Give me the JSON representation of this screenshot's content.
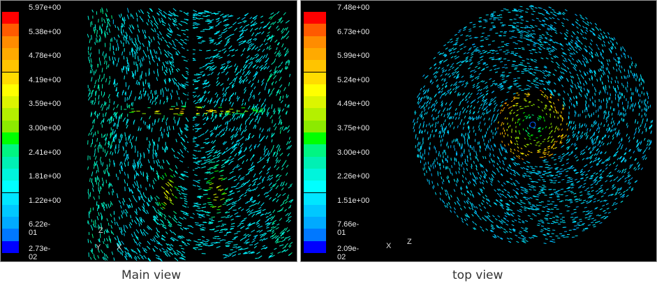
{
  "main_view": {
    "caption": "Main view",
    "colorbar_labels": [
      "5.97e+00",
      "5.38e+00",
      "4.78e+00",
      "4.19e+00",
      "3.59e+00",
      "3.00e+00",
      "2.41e+00",
      "1.81e+00",
      "1.22e+00",
      "6.22e-01",
      "2.73e-02"
    ],
    "axes": {
      "z": "Z",
      "y": "Y",
      "x": "X"
    }
  },
  "top_view": {
    "caption": "top view",
    "colorbar_labels": [
      "7.48e+00",
      "6.73e+00",
      "5.99e+00",
      "5.24e+00",
      "4.49e+00",
      "3.75e+00",
      "3.00e+00",
      "2.26e+00",
      "1.51e+00",
      "7.66e-01",
      "2.09e-02"
    ],
    "axes": {
      "x": "X",
      "z": "Z"
    }
  },
  "colormap": [
    "#ff0000",
    "#ff5a00",
    "#ff8c00",
    "#ffaa00",
    "#ffc400",
    "#ffdc00",
    "#ffff00",
    "#dcf500",
    "#b4f000",
    "#8cea00",
    "#00ff00",
    "#00f582",
    "#00f0b4",
    "#00f5dc",
    "#00ffff",
    "#00e6ff",
    "#00c8ff",
    "#00aaff",
    "#0078ff",
    "#0000ff"
  ]
}
